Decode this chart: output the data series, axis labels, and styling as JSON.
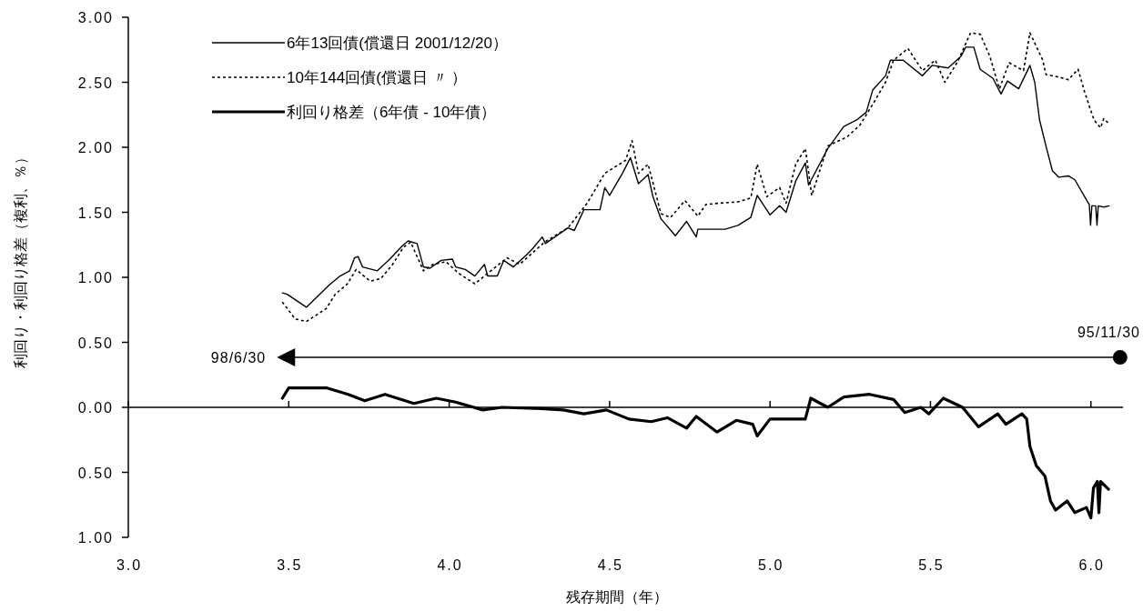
{
  "chart_data": {
    "type": "line",
    "xlabel": "残存期間（年）",
    "ylabel": "利回り・利回り格差（複利、％）",
    "xlim": [
      3.0,
      6.1
    ],
    "xticks": [
      {
        "value": 3,
        "label": "3.0"
      },
      {
        "value": 3.5,
        "label": "3.5"
      },
      {
        "value": 4,
        "label": "4.0"
      },
      {
        "value": 4.5,
        "label": "4.5"
      },
      {
        "value": 5,
        "label": "5.0"
      },
      {
        "value": 5.5,
        "label": "5.5"
      },
      {
        "value": 6,
        "label": "6.0"
      }
    ],
    "ylim": [
      -1,
      3
    ],
    "yticks": [
      {
        "value": 3,
        "label": "3.00"
      },
      {
        "value": 2.5,
        "label": "2.50"
      },
      {
        "value": 2,
        "label": "2.00"
      },
      {
        "value": 1.5,
        "label": "1.50"
      },
      {
        "value": 1,
        "label": "1.00"
      },
      {
        "value": 0.5,
        "label": "0.50"
      },
      {
        "value": 0,
        "label": "0.00"
      },
      {
        "value": -0.5,
        "label": "0.50"
      },
      {
        "value": -1,
        "label": "1.00"
      }
    ],
    "legend": "top left",
    "marker": "none",
    "annotations": [
      "98/6/30",
      "95/11/30"
    ],
    "series": [
      {
        "name": "6年13回債(償還日  2001/12/20）",
        "color": "#000000",
        "line_style": "solid",
        "x": [
          3.48,
          3.495,
          3.555,
          3.626,
          3.66,
          3.69,
          3.705,
          3.716,
          3.73,
          3.776,
          3.815,
          3.853,
          3.872,
          3.9,
          3.92,
          3.94,
          3.975,
          4.01,
          4.02,
          4.05,
          4.08,
          4.11,
          4.12,
          4.15,
          4.17,
          4.2,
          4.24,
          4.26,
          4.29,
          4.3,
          4.37,
          4.39,
          4.42,
          4.47,
          4.485,
          4.5,
          4.54,
          4.565,
          4.59,
          4.62,
          4.635,
          4.66,
          4.705,
          4.74,
          4.77,
          4.775,
          4.86,
          4.9,
          4.94,
          4.96,
          5.0,
          5.03,
          5.05,
          5.08,
          5.11,
          5.12,
          5.18,
          5.23,
          5.27,
          5.3,
          5.32,
          5.36,
          5.375,
          5.415,
          5.475,
          5.505,
          5.555,
          5.595,
          5.61,
          5.635,
          5.655,
          5.695,
          5.72,
          5.74,
          5.775,
          5.81,
          5.825,
          5.84,
          5.86,
          5.88,
          5.9,
          5.93,
          5.95,
          5.99,
          5.995,
          5.999,
          6.003,
          6.015,
          6.019,
          6.023,
          6.04,
          6.057
        ],
        "values": [
          0.88,
          0.87,
          0.77,
          0.94,
          1.01,
          1.05,
          1.15,
          1.16,
          1.08,
          1.05,
          1.14,
          1.24,
          1.28,
          1.26,
          1.08,
          1.07,
          1.13,
          1.14,
          1.08,
          1.06,
          1.01,
          1.1,
          1.01,
          1.01,
          1.13,
          1.08,
          1.17,
          1.22,
          1.31,
          1.26,
          1.38,
          1.36,
          1.52,
          1.52,
          1.69,
          1.63,
          1.8,
          1.92,
          1.72,
          1.79,
          1.62,
          1.45,
          1.32,
          1.43,
          1.31,
          1.37,
          1.37,
          1.4,
          1.46,
          1.63,
          1.48,
          1.55,
          1.5,
          1.74,
          1.88,
          1.71,
          1.99,
          2.16,
          2.21,
          2.27,
          2.44,
          2.55,
          2.67,
          2.67,
          2.55,
          2.63,
          2.61,
          2.7,
          2.77,
          2.77,
          2.6,
          2.53,
          2.41,
          2.51,
          2.45,
          2.63,
          2.5,
          2.21,
          2.01,
          1.82,
          1.77,
          1.78,
          1.75,
          1.58,
          1.56,
          1.4,
          1.55,
          1.55,
          1.4,
          1.55,
          1.54,
          1.55
        ]
      },
      {
        "name": "10年144回債(償還日  〃  ）",
        "color": "#000000",
        "line_style": "dotted",
        "x": [
          3.48,
          3.52,
          3.555,
          3.617,
          3.645,
          3.683,
          3.71,
          3.754,
          3.787,
          3.824,
          3.857,
          3.88,
          3.92,
          3.95,
          3.99,
          4.03,
          4.08,
          4.12,
          4.18,
          4.22,
          4.297,
          4.37,
          4.43,
          4.485,
          4.55,
          4.57,
          4.59,
          4.62,
          4.66,
          4.69,
          4.735,
          4.775,
          4.8,
          4.84,
          4.9,
          4.94,
          4.96,
          4.99,
          5.03,
          5.05,
          5.08,
          5.11,
          5.13,
          5.18,
          5.24,
          5.28,
          5.32,
          5.36,
          5.385,
          5.43,
          5.475,
          5.515,
          5.545,
          5.585,
          5.625,
          5.655,
          5.685,
          5.715,
          5.745,
          5.79,
          5.81,
          5.85,
          5.86,
          5.9,
          5.93,
          5.96,
          5.98,
          6.0,
          6.01,
          6.03,
          6.04,
          6.057
        ],
        "values": [
          0.81,
          0.68,
          0.66,
          0.76,
          0.87,
          0.95,
          1.06,
          0.97,
          0.99,
          1.1,
          1.23,
          1.27,
          1.05,
          1.1,
          1.12,
          1.03,
          0.95,
          1.03,
          1.15,
          1.1,
          1.27,
          1.38,
          1.57,
          1.8,
          1.9,
          2.05,
          1.8,
          1.87,
          1.49,
          1.46,
          1.59,
          1.47,
          1.56,
          1.57,
          1.58,
          1.61,
          1.87,
          1.62,
          1.69,
          1.57,
          1.87,
          1.99,
          1.63,
          2.01,
          2.08,
          2.17,
          2.33,
          2.5,
          2.67,
          2.76,
          2.59,
          2.67,
          2.5,
          2.66,
          2.88,
          2.87,
          2.7,
          2.45,
          2.65,
          2.59,
          2.88,
          2.67,
          2.56,
          2.54,
          2.52,
          2.6,
          2.43,
          2.28,
          2.21,
          2.15,
          2.22,
          2.18
        ]
      },
      {
        "name": "利回り格差（6年債  -  10年債）",
        "color": "#000000",
        "line_style": "solid",
        "x": [
          3.48,
          3.5,
          3.565,
          3.617,
          3.685,
          3.737,
          3.8,
          3.89,
          3.96,
          4.02,
          4.105,
          4.165,
          4.285,
          4.355,
          4.42,
          4.49,
          4.56,
          4.63,
          4.68,
          4.74,
          4.77,
          4.835,
          4.895,
          4.946,
          4.96,
          5.0,
          5.11,
          5.127,
          5.18,
          5.23,
          5.31,
          5.385,
          5.42,
          5.47,
          5.495,
          5.54,
          5.6,
          5.65,
          5.71,
          5.735,
          5.785,
          5.8,
          5.81,
          5.83,
          5.857,
          5.874,
          5.89,
          5.926,
          5.95,
          5.986,
          6.0,
          6.008,
          6.02,
          6.025,
          6.03,
          6.055
        ],
        "values": [
          0.07,
          0.15,
          0.15,
          0.15,
          0.1,
          0.05,
          0.1,
          0.03,
          0.07,
          0.04,
          -0.02,
          0,
          -0.01,
          -0.02,
          -0.05,
          -0.02,
          -0.09,
          -0.11,
          -0.08,
          -0.16,
          -0.07,
          -0.19,
          -0.1,
          -0.13,
          -0.22,
          -0.09,
          -0.09,
          0.07,
          0,
          0.08,
          0.1,
          0.06,
          -0.04,
          0,
          -0.05,
          0.07,
          0,
          -0.15,
          -0.05,
          -0.13,
          -0.05,
          -0.09,
          -0.3,
          -0.45,
          -0.53,
          -0.72,
          -0.79,
          -0.72,
          -0.81,
          -0.77,
          -0.85,
          -0.62,
          -0.57,
          -0.81,
          -0.57,
          -0.63
        ]
      }
    ]
  }
}
